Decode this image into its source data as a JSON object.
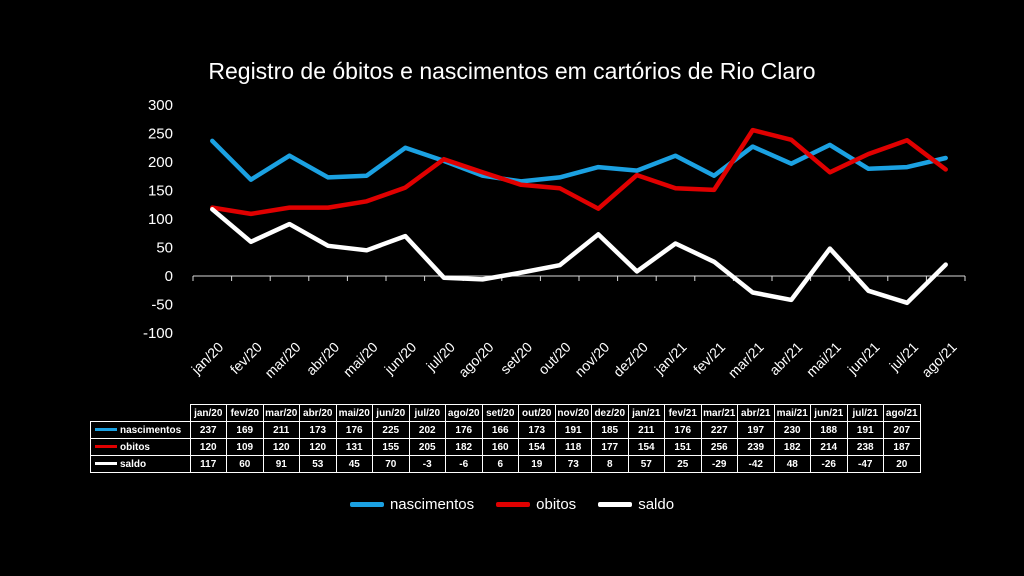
{
  "chart_data": {
    "type": "line",
    "title": "Registro de óbitos e nascimentos em cartórios de Rio Claro",
    "xlabel": "",
    "ylabel": "",
    "ylim": [
      -100,
      300
    ],
    "yticks": [
      300,
      250,
      200,
      150,
      100,
      50,
      0,
      -50,
      -100
    ],
    "categories": [
      "jan/20",
      "fev/20",
      "mar/20",
      "abr/20",
      "mai/20",
      "jun/20",
      "jul/20",
      "ago/20",
      "set/20",
      "out/20",
      "nov/20",
      "dez/20",
      "jan/21",
      "fev/21",
      "mar/21",
      "abr/21",
      "mai/21",
      "jun/21",
      "jul/21",
      "ago/21"
    ],
    "series": [
      {
        "name": "nascimentos",
        "color": "#1BA1E2",
        "values": [
          237,
          169,
          211,
          173,
          176,
          225,
          202,
          176,
          166,
          173,
          191,
          185,
          211,
          176,
          227,
          197,
          230,
          188,
          191,
          207
        ]
      },
      {
        "name": "obitos",
        "color": "#E00000",
        "values": [
          120,
          109,
          120,
          120,
          131,
          155,
          205,
          182,
          160,
          154,
          118,
          177,
          154,
          151,
          256,
          239,
          182,
          214,
          238,
          187
        ]
      },
      {
        "name": "saldo",
        "color": "#FFFFFF",
        "values": [
          117,
          60,
          91,
          53,
          45,
          70,
          -3,
          -6,
          6,
          19,
          73,
          8,
          57,
          25,
          -29,
          -42,
          48,
          -26,
          -47,
          20
        ]
      }
    ],
    "legend_position": "bottom"
  }
}
